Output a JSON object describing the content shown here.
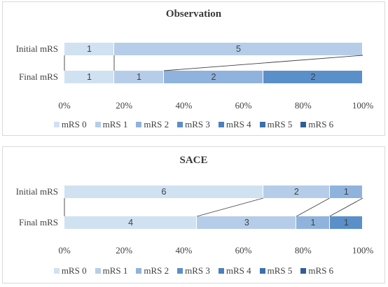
{
  "chart_data": [
    {
      "type": "bar",
      "orientation": "horizontal",
      "stacked": "percent",
      "title": "Observation",
      "categories": [
        "Initial mRS",
        "Final mRS"
      ],
      "series": [
        {
          "name": "mRS 0",
          "values": [
            1,
            1
          ],
          "color": "#d0e1f2"
        },
        {
          "name": "mRS 1",
          "values": [
            5,
            1
          ],
          "color": "#b5cde8"
        },
        {
          "name": "mRS 2",
          "values": [
            0,
            2
          ],
          "color": "#8fb3dc"
        },
        {
          "name": "mRS 3",
          "values": [
            0,
            2
          ],
          "color": "#5a8fc9"
        },
        {
          "name": "mRS 4",
          "values": [
            0,
            0
          ],
          "color": "#4a80bf"
        },
        {
          "name": "mRS 5",
          "values": [
            0,
            0
          ],
          "color": "#3b6fae"
        },
        {
          "name": "mRS 6",
          "values": [
            0,
            0
          ],
          "color": "#2f5e98"
        }
      ],
      "x_ticks": [
        "0%",
        "20%",
        "40%",
        "60%",
        "80%",
        "100%"
      ],
      "xlim": [
        0,
        100
      ],
      "grid": false,
      "legend_position": "bottom"
    },
    {
      "type": "bar",
      "orientation": "horizontal",
      "stacked": "percent",
      "title": "SACE",
      "categories": [
        "Initial mRS",
        "Final mRS"
      ],
      "series": [
        {
          "name": "mRS 0",
          "values": [
            6,
            4
          ],
          "color": "#d0e1f2"
        },
        {
          "name": "mRS 1",
          "values": [
            2,
            3
          ],
          "color": "#b5cde8"
        },
        {
          "name": "mRS 2",
          "values": [
            1,
            1
          ],
          "color": "#8fb3dc"
        },
        {
          "name": "mRS 3",
          "values": [
            0,
            1
          ],
          "color": "#5a8fc9"
        },
        {
          "name": "mRS 4",
          "values": [
            0,
            0
          ],
          "color": "#4a80bf"
        },
        {
          "name": "mRS 5",
          "values": [
            0,
            0
          ],
          "color": "#3b6fae"
        },
        {
          "name": "mRS 6",
          "values": [
            0,
            0
          ],
          "color": "#2f5e98"
        }
      ],
      "x_ticks": [
        "0%",
        "20%",
        "40%",
        "60%",
        "80%",
        "100%"
      ],
      "xlim": [
        0,
        100
      ],
      "grid": false,
      "legend_position": "bottom"
    }
  ]
}
